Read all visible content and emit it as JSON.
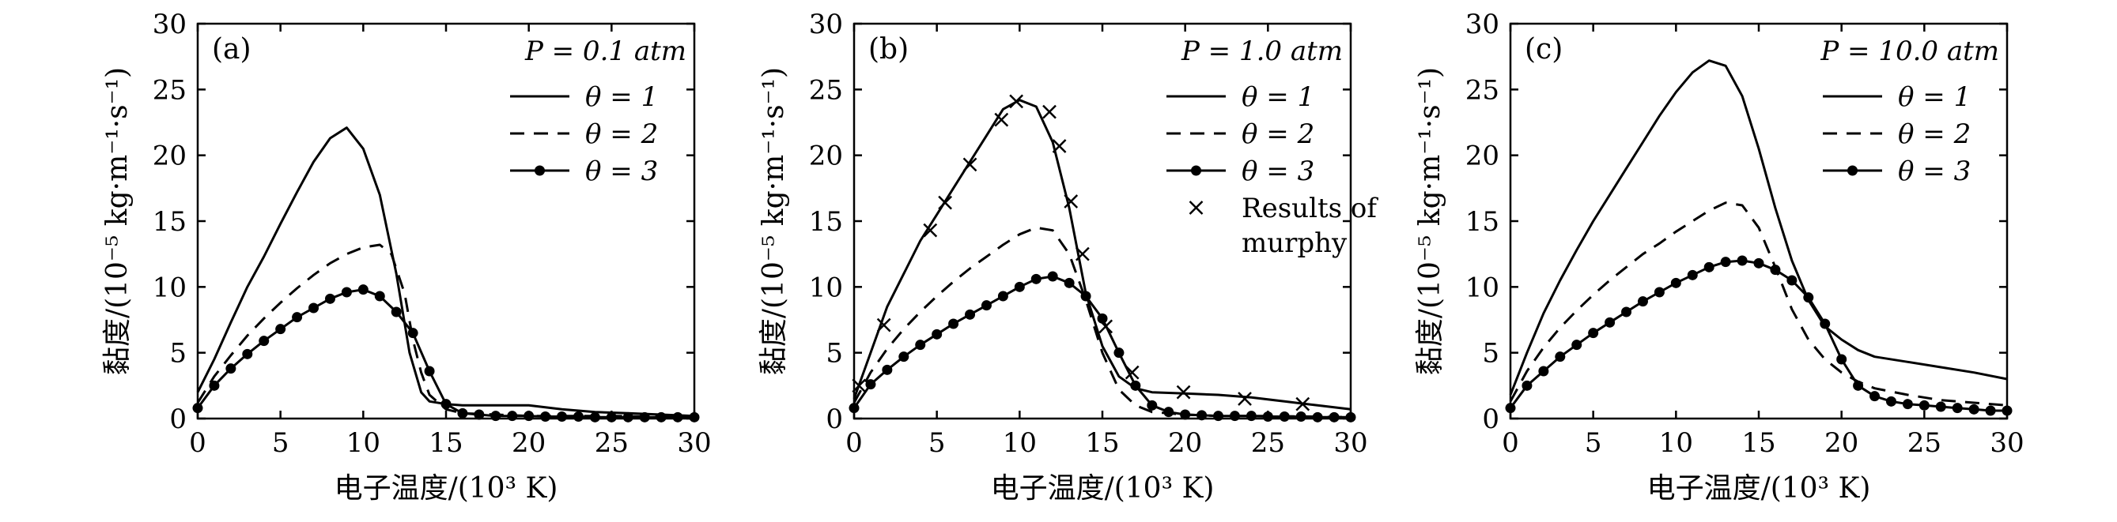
{
  "chart_data": [
    {
      "type": "line",
      "panel_label": "(a)",
      "pressure_label": "P = 0.1 atm",
      "xlabel": "电子温度/(10³ K)",
      "ylabel": "黏度/(10⁻⁵ kg·m⁻¹·s⁻¹)",
      "xlim": [
        0,
        30
      ],
      "ylim": [
        0,
        30
      ],
      "xticks": [
        "0",
        "5",
        "10",
        "15",
        "20",
        "25",
        "30"
      ],
      "yticks": [
        "0",
        "5",
        "10",
        "15",
        "20",
        "25",
        "30"
      ],
      "legend_position": "top-right",
      "series": [
        {
          "name": "θ = 1",
          "style": "solid",
          "x": [
            0,
            1,
            2,
            3,
            4,
            5,
            6,
            7,
            8,
            9,
            10,
            11,
            12,
            12.8,
            13.5,
            14,
            15,
            16,
            18,
            20,
            22,
            24,
            26,
            28,
            30
          ],
          "y": [
            2,
            4.5,
            7.3,
            10,
            12.3,
            14.8,
            17.2,
            19.5,
            21.3,
            22.1,
            20.5,
            17,
            11,
            5,
            2,
            1.3,
            1.1,
            1,
            1,
            1,
            0.7,
            0.5,
            0.4,
            0.3,
            0.2
          ]
        },
        {
          "name": "θ = 2",
          "style": "dashed",
          "x": [
            0,
            1,
            2,
            3,
            4,
            5,
            6,
            7,
            8,
            9,
            10,
            11,
            11.7,
            12.5,
            13,
            13.5,
            14,
            15,
            16,
            18,
            20,
            22,
            25,
            30
          ],
          "y": [
            1.2,
            3.2,
            4.8,
            6.3,
            7.6,
            8.8,
            9.9,
            10.9,
            11.8,
            12.5,
            13,
            13.2,
            12.5,
            9.5,
            6,
            3.5,
            1.8,
            0.7,
            0.4,
            0.3,
            0.2,
            0.2,
            0.2,
            0.1
          ]
        },
        {
          "name": "θ = 3",
          "style": "solid-circle",
          "x": [
            0,
            1,
            2,
            3,
            4,
            5,
            6,
            7,
            8,
            9,
            10,
            11,
            12,
            13,
            14,
            15,
            16,
            17,
            18,
            19,
            20,
            21,
            22,
            23,
            24,
            25,
            26,
            27,
            28,
            29,
            30
          ],
          "y": [
            0.8,
            2.5,
            3.8,
            4.9,
            5.9,
            6.8,
            7.7,
            8.4,
            9.1,
            9.6,
            9.8,
            9.3,
            8.1,
            6.5,
            3.6,
            1.1,
            0.4,
            0.3,
            0.2,
            0.2,
            0.2,
            0.15,
            0.15,
            0.15,
            0.1,
            0.1,
            0.1,
            0.1,
            0.1,
            0.1,
            0.1
          ]
        }
      ]
    },
    {
      "type": "line",
      "panel_label": "(b)",
      "pressure_label": "P = 1.0 atm",
      "xlabel": "电子温度/(10³ K)",
      "ylabel": "黏度/(10⁻⁵ kg·m⁻¹·s⁻¹)",
      "xlim": [
        0,
        30
      ],
      "ylim": [
        0,
        30
      ],
      "xticks": [
        "0",
        "5",
        "10",
        "15",
        "20",
        "25",
        "30"
      ],
      "yticks": [
        "0",
        "5",
        "10",
        "15",
        "20",
        "25",
        "30"
      ],
      "legend_position": "top-right",
      "series": [
        {
          "name": "θ = 1",
          "style": "solid",
          "x": [
            0,
            1,
            2,
            3,
            4,
            5,
            6,
            7,
            8,
            9,
            10,
            11,
            12,
            13,
            14,
            15,
            16,
            17,
            18,
            20,
            22,
            24,
            26,
            28,
            30
          ],
          "y": [
            1.5,
            5,
            8.5,
            11,
            13.5,
            15.5,
            17.5,
            19.5,
            21.5,
            23.5,
            24.2,
            23.7,
            21,
            16,
            9.5,
            5.5,
            3.2,
            2.3,
            2,
            1.9,
            1.8,
            1.6,
            1.3,
            1,
            0.7
          ]
        },
        {
          "name": "θ = 2",
          "style": "dashed",
          "x": [
            0,
            1,
            2,
            3,
            4,
            5,
            6,
            7,
            8,
            9,
            10,
            11,
            12,
            13,
            14,
            15,
            16,
            17,
            18,
            20,
            22,
            25,
            30
          ],
          "y": [
            1.2,
            3.5,
            5.3,
            6.8,
            8.1,
            9.3,
            10.4,
            11.4,
            12.3,
            13.2,
            14,
            14.5,
            14.3,
            12.5,
            9,
            5,
            2.2,
            1,
            0.5,
            0.3,
            0.2,
            0.2,
            0.1
          ]
        },
        {
          "name": "θ = 3",
          "style": "solid-circle",
          "x": [
            0,
            1,
            2,
            3,
            4,
            5,
            6,
            7,
            8,
            9,
            10,
            11,
            12,
            13,
            14,
            15,
            16,
            17,
            18,
            19,
            20,
            21,
            22,
            23,
            24,
            25,
            26,
            27,
            28,
            29,
            30
          ],
          "y": [
            0.8,
            2.6,
            3.7,
            4.7,
            5.6,
            6.4,
            7.2,
            7.9,
            8.6,
            9.3,
            10,
            10.6,
            10.8,
            10.3,
            9.3,
            7.6,
            5,
            2.5,
            1,
            0.5,
            0.3,
            0.25,
            0.2,
            0.2,
            0.2,
            0.15,
            0.15,
            0.15,
            0.1,
            0.1,
            0.1
          ]
        },
        {
          "name": "Results of murphy",
          "style": "cross",
          "x": [
            0.3,
            1.8,
            4.6,
            5.5,
            7,
            8.9,
            9.8,
            11.8,
            12.4,
            13.1,
            13.8,
            15.2,
            16.8,
            19.9,
            23.6,
            27.1
          ],
          "y": [
            2.5,
            7.1,
            14.3,
            16.4,
            19.3,
            22.7,
            24.1,
            23.3,
            20.7,
            16.5,
            12.5,
            7,
            3.5,
            2,
            1.5,
            1.1
          ]
        }
      ]
    },
    {
      "type": "line",
      "panel_label": "(c)",
      "pressure_label": "P = 10.0 atm",
      "xlabel": "电子温度/(10³ K)",
      "ylabel": "黏度/(10⁻⁵ kg·m⁻¹·s⁻¹)",
      "xlim": [
        0,
        30
      ],
      "ylim": [
        0,
        30
      ],
      "xticks": [
        "0",
        "5",
        "10",
        "15",
        "20",
        "25",
        "30"
      ],
      "yticks": [
        "0",
        "5",
        "10",
        "15",
        "20",
        "25",
        "30"
      ],
      "legend_position": "top-right",
      "series": [
        {
          "name": "θ = 1",
          "style": "solid",
          "x": [
            0,
            1,
            2,
            3,
            4,
            5,
            6,
            7,
            8,
            9,
            10,
            11,
            12,
            13,
            14,
            15,
            16,
            17,
            18,
            19,
            20,
            21,
            22,
            24,
            26,
            28,
            30
          ],
          "y": [
            1.8,
            5,
            8,
            10.5,
            12.8,
            15,
            17,
            19,
            21,
            23,
            24.8,
            26.3,
            27.2,
            26.8,
            24.5,
            20.5,
            16,
            12,
            9,
            7,
            6,
            5.2,
            4.7,
            4.3,
            3.9,
            3.5,
            3
          ]
        },
        {
          "name": "θ = 2",
          "style": "dashed",
          "x": [
            0,
            1,
            2,
            3,
            4,
            5,
            6,
            7,
            8,
            9,
            10,
            11,
            12,
            13,
            14,
            15,
            16,
            17,
            18,
            19,
            20,
            21,
            22,
            24,
            26,
            28,
            30
          ],
          "y": [
            1.3,
            3.6,
            5.4,
            6.9,
            8.2,
            9.4,
            10.5,
            11.5,
            12.5,
            13.3,
            14.2,
            15,
            15.8,
            16.4,
            16.2,
            14.5,
            11.5,
            8.3,
            6,
            4.5,
            3.5,
            2.8,
            2.3,
            1.8,
            1.4,
            1.2,
            1
          ]
        },
        {
          "name": "θ = 3",
          "style": "solid-circle",
          "x": [
            0,
            1,
            2,
            3,
            4,
            5,
            6,
            7,
            8,
            9,
            10,
            11,
            12,
            13,
            14,
            15,
            16,
            17,
            18,
            19,
            20,
            21,
            22,
            23,
            24,
            25,
            26,
            27,
            28,
            29,
            30
          ],
          "y": [
            0.8,
            2.5,
            3.6,
            4.7,
            5.6,
            6.5,
            7.3,
            8.1,
            8.9,
            9.6,
            10.3,
            10.9,
            11.5,
            11.9,
            12,
            11.8,
            11.3,
            10.5,
            9.2,
            7.2,
            4.5,
            2.5,
            1.7,
            1.3,
            1.1,
            1,
            0.9,
            0.8,
            0.7,
            0.6,
            0.6
          ]
        }
      ]
    }
  ]
}
